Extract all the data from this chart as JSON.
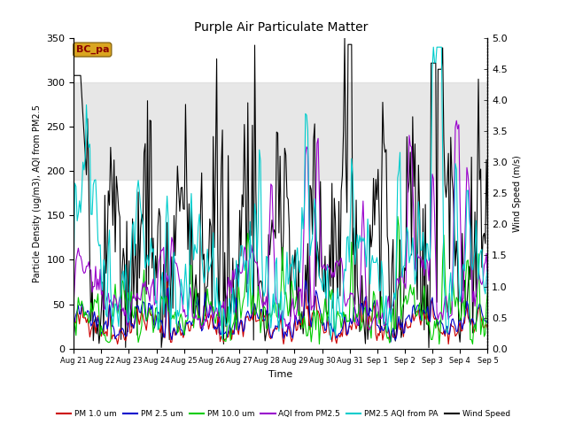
{
  "title": "Purple Air Particulate Matter",
  "xlabel": "Time",
  "ylabel_left": "Particle Density (ug/m3), AQI from PM2.5",
  "ylabel_right": "Wind Speed (m/s)",
  "annotation_text": "BC_pa",
  "annotation_color": "#8B0000",
  "annotation_bg": "#DAA520",
  "annotation_edge": "#8B6914",
  "ylim_left": [
    0,
    350
  ],
  "ylim_right": [
    0,
    5.0
  ],
  "shade_band": [
    190,
    300
  ],
  "x_tick_labels": [
    "Aug 21",
    "Aug 22",
    "Aug 23",
    "Aug 24",
    "Aug 25",
    "Aug 26",
    "Aug 27",
    "Aug 28",
    "Aug 29",
    "Aug 30",
    "Aug 31",
    "Sep 1",
    "Sep 2",
    "Sep 3",
    "Sep 4",
    "Sep 5"
  ],
  "yticks_left": [
    0,
    50,
    100,
    150,
    200,
    250,
    300,
    350
  ],
  "yticks_right": [
    0.0,
    0.5,
    1.0,
    1.5,
    2.0,
    2.5,
    3.0,
    3.5,
    4.0,
    4.5,
    5.0
  ],
  "legend_entries": [
    {
      "label": "PM 1.0 um",
      "color": "#cc0000"
    },
    {
      "label": "PM 2.5 um",
      "color": "#0000cc"
    },
    {
      "label": "PM 10.0 um",
      "color": "#00cc00"
    },
    {
      "label": "AQI from PM2.5",
      "color": "#9900cc"
    },
    {
      "label": "PM2.5 AQI from PA",
      "color": "#00cccc"
    },
    {
      "label": "Wind Speed",
      "color": "#000000"
    }
  ],
  "colors": {
    "pm1": "#cc0000",
    "pm25": "#0000cc",
    "pm10": "#00cc00",
    "aqi": "#9900cc",
    "aqi_pa": "#00cccc",
    "wind": "#000000"
  }
}
